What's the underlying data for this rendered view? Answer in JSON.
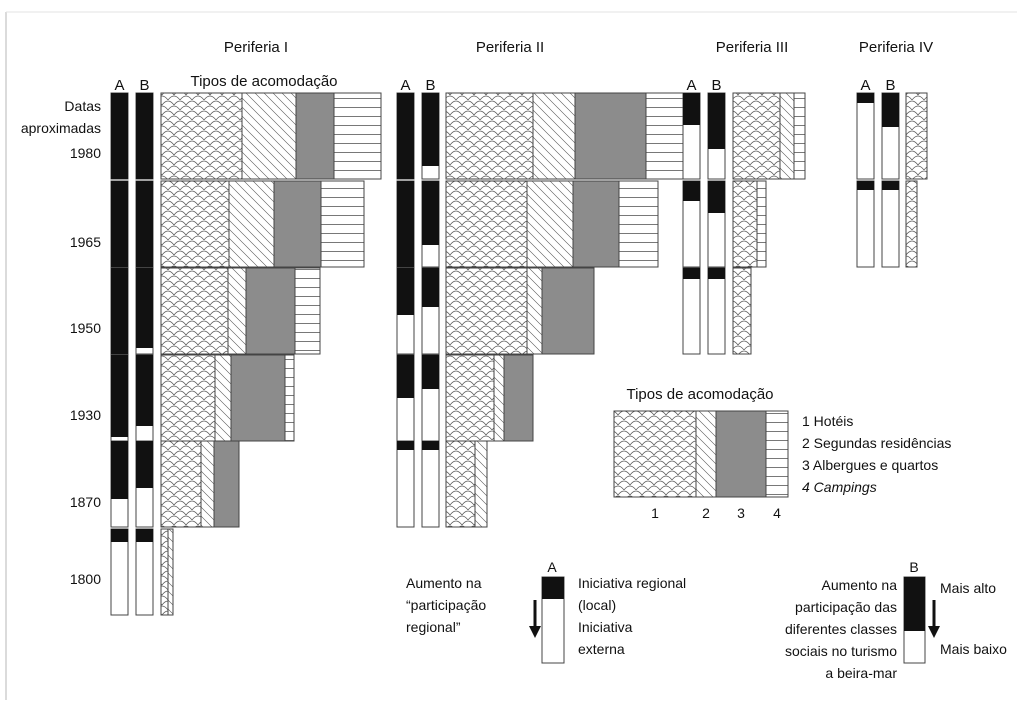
{
  "peripheries": [
    {
      "name": "Periferia I",
      "accommodation_header": "Tipos de acomodação"
    },
    {
      "name": "Periferia II"
    },
    {
      "name": "Periferia III"
    },
    {
      "name": "Periferia IV"
    }
  ],
  "column_labels": {
    "a": "A",
    "b": "B"
  },
  "dates_header": [
    "Datas",
    "aproximadas"
  ],
  "years": [
    "1980",
    "1965",
    "1950",
    "1930",
    "1870",
    "1800"
  ],
  "share_scale": "fraction of bar height shown as black (top) portion",
  "grid": [
    [
      {
        "A": 1.0,
        "B": 1.0,
        "hotels": 0.45,
        "second_homes": 0.3,
        "hostels": 0.21,
        "campings": 0.26
      },
      {
        "A": 1.0,
        "B": 1.0,
        "hotels": 0.38,
        "second_homes": 0.25,
        "hostels": 0.26,
        "campings": 0.24
      },
      {
        "A": 1.0,
        "B": 0.93,
        "hotels": 0.37,
        "second_homes": 0.1,
        "hostels": 0.27,
        "campings": 0.14
      },
      {
        "A": 0.95,
        "B": 0.83,
        "hotels": 0.3,
        "second_homes": 0.09,
        "hostels": 0.3,
        "campings": 0.05
      },
      {
        "A": 0.67,
        "B": 0.55,
        "hotels": 0.22,
        "second_homes": 0.07,
        "hostels": 0.14,
        "campings": 0.0
      },
      {
        "A": 0.15,
        "B": 0.15,
        "hotels": 0.04,
        "second_homes": 0.03,
        "hostels": 0.0,
        "campings": 0.0
      }
    ],
    [
      {
        "A": 1.0,
        "B": 0.85,
        "hotels": 0.45,
        "second_homes": 0.22,
        "hostels": 0.37,
        "campings": 0.19
      },
      {
        "A": 1.0,
        "B": 0.74,
        "hotels": 0.42,
        "second_homes": 0.24,
        "hostels": 0.24,
        "campings": 0.2
      },
      {
        "A": 0.55,
        "B": 0.45,
        "hotels": 0.42,
        "second_homes": 0.08,
        "hostels": 0.27,
        "campings": 0.0
      },
      {
        "A": 0.5,
        "B": 0.4,
        "hotels": 0.25,
        "second_homes": 0.05,
        "hostels": 0.15,
        "campings": 0.0
      },
      {
        "A": 0.1,
        "B": 0.1,
        "hotels": 0.15,
        "second_homes": 0.06,
        "hostels": 0.0,
        "campings": 0.0
      }
    ],
    [
      {
        "A": 0.37,
        "B": 0.65,
        "hotels": 0.31,
        "second_homes": 0.09,
        "hostels": 0.0,
        "campings": 0.07
      },
      {
        "A": 0.23,
        "B": 0.37,
        "hotels": 0.16,
        "second_homes": 0.0,
        "hostels": 0.0,
        "campings": 0.06
      },
      {
        "A": 0.13,
        "B": 0.13,
        "hotels": 0.12,
        "second_homes": 0.0,
        "hostels": 0.0,
        "campings": 0.0
      }
    ],
    [
      {
        "A": 0.12,
        "B": 0.4,
        "hotels": 0.14,
        "second_homes": 0.0,
        "hostels": 0.0,
        "campings": 0.0
      },
      {
        "A": 0.1,
        "B": 0.1,
        "hotels": 0.07,
        "second_homes": 0.0,
        "hostels": 0.0,
        "campings": 0.0
      }
    ]
  ],
  "legend": {
    "title": "Tipos de acomodação",
    "items": [
      {
        "number": "1",
        "label": "Hotéis",
        "pattern": "scales"
      },
      {
        "number": "2",
        "label": "Segundas residências",
        "pattern": "diagonal"
      },
      {
        "number": "3",
        "label": "Albergues e quartos",
        "pattern": "grey"
      },
      {
        "number": "4",
        "label": "Campings",
        "pattern": "horizontal"
      }
    ],
    "item_lines": [
      "1 Hotéis",
      "2 Segundas residências",
      "3 Albergues e quartos",
      "4 Campings"
    ]
  },
  "key_a": {
    "label": "A",
    "left_text": [
      "Aumento na",
      "“participação",
      "regional”"
    ],
    "right_text": [
      "Iniciativa regional",
      "(local)",
      "Iniciativa",
      "externa"
    ]
  },
  "key_b": {
    "label": "B",
    "left_text": [
      "Aumento na",
      "participação das",
      "diferentes classes",
      "sociais no turismo",
      "a beira-mar"
    ],
    "top_text": "Mais alto",
    "bottom_text": "Mais baixo"
  },
  "colors": {
    "black": "#111111",
    "grey": "#8c8c8c",
    "line": "#444444",
    "border": "#cfcfcf"
  }
}
